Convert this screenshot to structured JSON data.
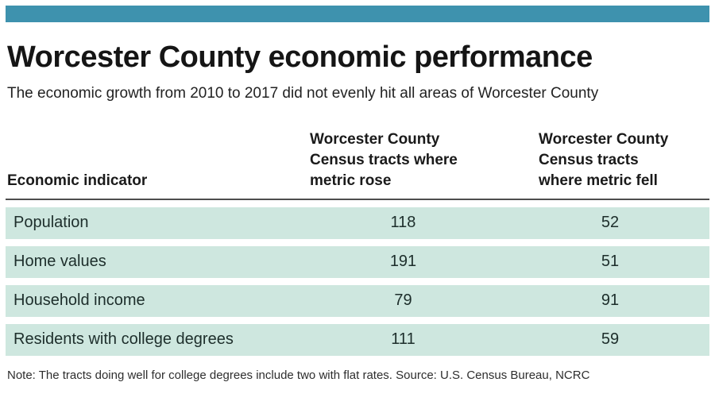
{
  "colors": {
    "accent_bar": "#3e92ae",
    "row_background": "#cee7df",
    "header_rule": "#4d4d4d",
    "text": "#151515"
  },
  "title": "Worcester County economic performance",
  "subtitle": "The economic growth from 2010 to 2017 did not evenly hit all areas of Worcester County",
  "table": {
    "col_headers": {
      "indicator": "Economic indicator",
      "rose": "Worcester County\nCensus tracts where\nmetric rose",
      "fell": "Worcester County\nCensus tracts\nwhere metric fell"
    },
    "rows": [
      {
        "indicator": "Population",
        "rose": "118",
        "fell": "52"
      },
      {
        "indicator": "Home values",
        "rose": "191",
        "fell": "51"
      },
      {
        "indicator": "Household income",
        "rose": "79",
        "fell": "91"
      },
      {
        "indicator": "Residents with college degrees",
        "rose": "111",
        "fell": "59"
      }
    ]
  },
  "note": "Note: The tracts doing well for college degrees include two with flat rates. Source: U.S. Census Bureau, NCRC",
  "chart_data": {
    "type": "table",
    "title": "Worcester County economic performance",
    "subtitle": "The economic growth from 2010 to 2017 did not evenly hit all areas of Worcester County",
    "columns": [
      "Economic indicator",
      "Worcester County Census tracts where metric rose",
      "Worcester County Census tracts where metric fell"
    ],
    "rows": [
      [
        "Population",
        118,
        52
      ],
      [
        "Home values",
        191,
        51
      ],
      [
        "Household income",
        79,
        91
      ],
      [
        "Residents with college degrees",
        111,
        59
      ]
    ],
    "note": "Note: The tracts doing well for college degrees include two with flat rates. Source: U.S. Census Bureau, NCRC"
  }
}
